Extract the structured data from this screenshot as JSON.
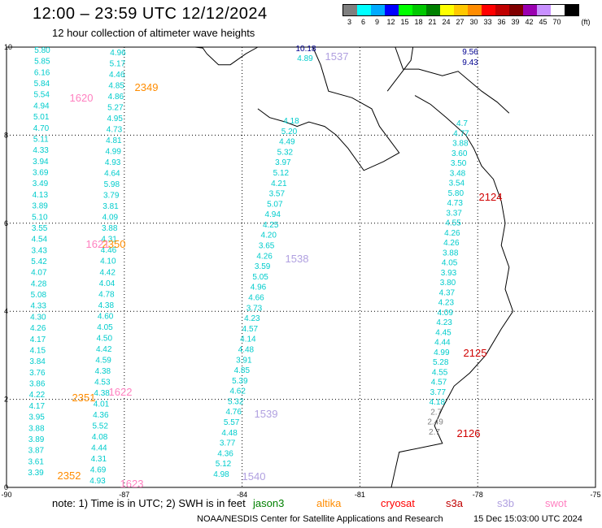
{
  "header": {
    "title": "12:00 – 23:59 UTC 12/12/2024",
    "subtitle": "12 hour collection of altimeter wave heights"
  },
  "legend": {
    "unit": "(ft)",
    "bins": [
      {
        "label": "3",
        "color": "#7f7f7f"
      },
      {
        "label": "6",
        "color": "#00ffff"
      },
      {
        "label": "9",
        "color": "#00aaff"
      },
      {
        "label": "12",
        "color": "#0000ff"
      },
      {
        "label": "15",
        "color": "#00ff00"
      },
      {
        "label": "18",
        "color": "#00c800"
      },
      {
        "label": "21",
        "color": "#008000"
      },
      {
        "label": "24",
        "color": "#ffff00"
      },
      {
        "label": "27",
        "color": "#ffc800"
      },
      {
        "label": "30",
        "color": "#ff8c00"
      },
      {
        "label": "33",
        "color": "#ff0000"
      },
      {
        "label": "36",
        "color": "#c00000"
      },
      {
        "label": "39",
        "color": "#800000"
      },
      {
        "label": "42",
        "color": "#9a00b0"
      },
      {
        "label": "45",
        "color": "#c890ff"
      },
      {
        "label": "70",
        "color": "#ffffff"
      },
      {
        "label": "",
        "color": "#000000"
      }
    ]
  },
  "map": {
    "lat_range": [
      0,
      10
    ],
    "lon_range": [
      -90,
      -75
    ],
    "lat_ticks": [
      "0",
      "2",
      "4",
      "6",
      "8",
      "10"
    ],
    "lon_ticks": [
      "-90",
      "-87",
      "-84",
      "-81",
      "-78",
      "-75"
    ],
    "coast_color": "#000000",
    "grid_color": "#000000",
    "track_color": "#00cccc",
    "low_value_color": "#808080"
  },
  "tracks": [
    {
      "name": "track-west-1",
      "values": [
        "5.80",
        "5.85",
        "6.16",
        "5.84",
        "5.54",
        "4.94",
        "5.01",
        "4.70",
        "5.11",
        "4.33",
        "3.94",
        "3.69",
        "3.49",
        "4.13",
        "3.89",
        "5.10",
        "3.55",
        "4.54",
        "3.43",
        "5.42",
        "4.07",
        "4.28",
        "5.08",
        "4.33",
        "4.30",
        "4.26",
        "4.17",
        "4.15",
        "3.84",
        "3.76",
        "3.86",
        "4.22",
        "4.17",
        "3.95",
        "3.88",
        "3.89",
        "3.87",
        "3.61",
        "3.39"
      ]
    },
    {
      "name": "track-west-2",
      "values": [
        "4.96",
        "5.17",
        "4.46",
        "4.85",
        "4.86",
        "5.27",
        "4.95",
        "4.73",
        "4.81",
        "4.99",
        "4.93",
        "4.64",
        "5.98",
        "3.79",
        "3.81",
        "4.09",
        "3.88",
        "4.31",
        "4.46",
        "4.10",
        "4.42",
        "4.04",
        "4.78",
        "4.38",
        "4.60",
        "4.05",
        "4.50",
        "4.42",
        "4.59",
        "4.38",
        "4.53",
        "4.38",
        "4.01",
        "4.36",
        "5.52",
        "4.08",
        "4.44",
        "4.31",
        "4.69",
        "4.93"
      ]
    },
    {
      "name": "track-central",
      "values": [
        "4.18",
        "5.20",
        "4.49",
        "5.32",
        "3.97",
        "5.12",
        "4.21",
        "3.57",
        "5.07",
        "4.94",
        "4.25",
        "4.20",
        "3.65",
        "4.26",
        "3.59",
        "5.05",
        "4.96",
        "4.66",
        "3.73",
        "4.23",
        "4.57",
        "4.14",
        "4.48",
        "3.91",
        "4.85",
        "5.39",
        "4.62",
        "5.32",
        "4.76",
        "5.57",
        "4.48",
        "3.77",
        "4.36",
        "5.12",
        "4.98"
      ]
    },
    {
      "name": "track-east",
      "values": [
        "4.7",
        "4.77",
        "3.88",
        "3.60",
        "3.50",
        "3.48",
        "3.54",
        "5.80",
        "4.73",
        "3.37",
        "4.55",
        "4.26",
        "4.26",
        "3.88",
        "4.05",
        "3.93",
        "3.80",
        "4.37",
        "4.23",
        "4.09",
        "4.23",
        "4.45",
        "4.44",
        "4.99",
        "5.28",
        "4.55",
        "4.57",
        "3.77",
        "4.18",
        "2.7",
        "2.49",
        "2.7"
      ]
    }
  ],
  "pass_labels": [
    {
      "text": "1620",
      "color": "#ff80c0"
    },
    {
      "text": "2349",
      "color": "#ff8c00"
    },
    {
      "text": "2350",
      "color": "#ff8c00"
    },
    {
      "text": "1621",
      "color": "#ff80c0"
    },
    {
      "text": "2351",
      "color": "#ff8c00"
    },
    {
      "text": "1622",
      "color": "#ff80c0"
    },
    {
      "text": "2352",
      "color": "#ff8c00"
    },
    {
      "text": "1623",
      "color": "#ff80c0"
    },
    {
      "text": "1537",
      "color": "#b0a0e0"
    },
    {
      "text": "1538",
      "color": "#b0a0e0"
    },
    {
      "text": "1539",
      "color": "#b0a0e0"
    },
    {
      "text": "1540",
      "color": "#b0a0e0"
    },
    {
      "text": "2124",
      "color": "#d00000"
    },
    {
      "text": "2125",
      "color": "#d00000"
    },
    {
      "text": "2126",
      "color": "#d00000"
    }
  ],
  "dark_values": [
    {
      "text": "10.18",
      "color": "#000090"
    },
    {
      "text": "4.89",
      "color": "#00cccc"
    },
    {
      "text": "9.56",
      "color": "#000090"
    },
    {
      "text": "9.43",
      "color": "#000090"
    }
  ],
  "footer": {
    "note": "note:  1) Time is in UTC;  2) SWH is in feet",
    "satellites": [
      {
        "name": "jason3",
        "color": "#008000"
      },
      {
        "name": "altika",
        "color": "#ff8c00"
      },
      {
        "name": "cryosat",
        "color": "#ff0000"
      },
      {
        "name": "s3a",
        "color": "#c00000"
      },
      {
        "name": "s3b",
        "color": "#b0a0e0"
      },
      {
        "name": "swot",
        "color": "#ff80c0"
      }
    ],
    "credit": "NOAA/NESDIS Center for Satellite Applications and Research",
    "timestamp": "15 Dec 15:03:00 UTC 2024"
  }
}
